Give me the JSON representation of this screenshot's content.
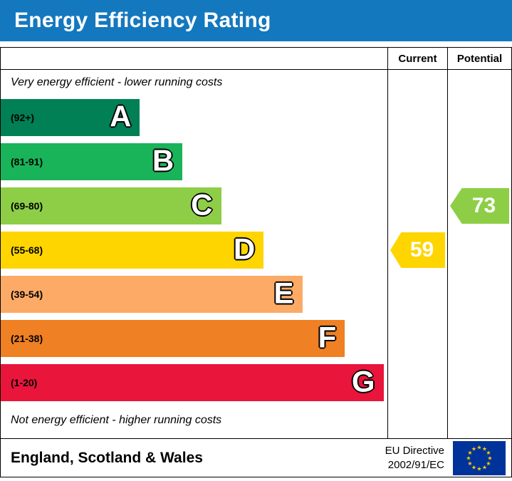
{
  "title": "Energy Efficiency Rating",
  "colors": {
    "header_bg": "#1478be",
    "header_text": "#ffffff"
  },
  "header": {
    "current": "Current",
    "potential": "Potential"
  },
  "top_note": "Very energy efficient - lower running costs",
  "bottom_note": "Not energy efficient - higher running costs",
  "footer": {
    "region": "England, Scotland & Wales",
    "directive_line1": "EU Directive",
    "directive_line2": "2002/91/EC"
  },
  "chart_data": {
    "type": "bar",
    "title": "Energy Efficiency Rating",
    "orientation": "horizontal",
    "bands": [
      {
        "letter": "A",
        "range": "(92+)",
        "color": "#008054",
        "width_pct": 36
      },
      {
        "letter": "B",
        "range": "(81-91)",
        "color": "#19b459",
        "width_pct": 47
      },
      {
        "letter": "C",
        "range": "(69-80)",
        "color": "#8dce46",
        "width_pct": 57
      },
      {
        "letter": "D",
        "range": "(55-68)",
        "color": "#ffd500",
        "width_pct": 68
      },
      {
        "letter": "E",
        "range": "(39-54)",
        "color": "#fcaa65",
        "width_pct": 78
      },
      {
        "letter": "F",
        "range": "(21-38)",
        "color": "#ef8023",
        "width_pct": 89
      },
      {
        "letter": "G",
        "range": "(1-20)",
        "color": "#e9153b",
        "width_pct": 99
      }
    ],
    "current": {
      "value": 59,
      "band": "D",
      "color": "#ffd500"
    },
    "potential": {
      "value": 73,
      "band": "C",
      "color": "#8dce46"
    }
  }
}
